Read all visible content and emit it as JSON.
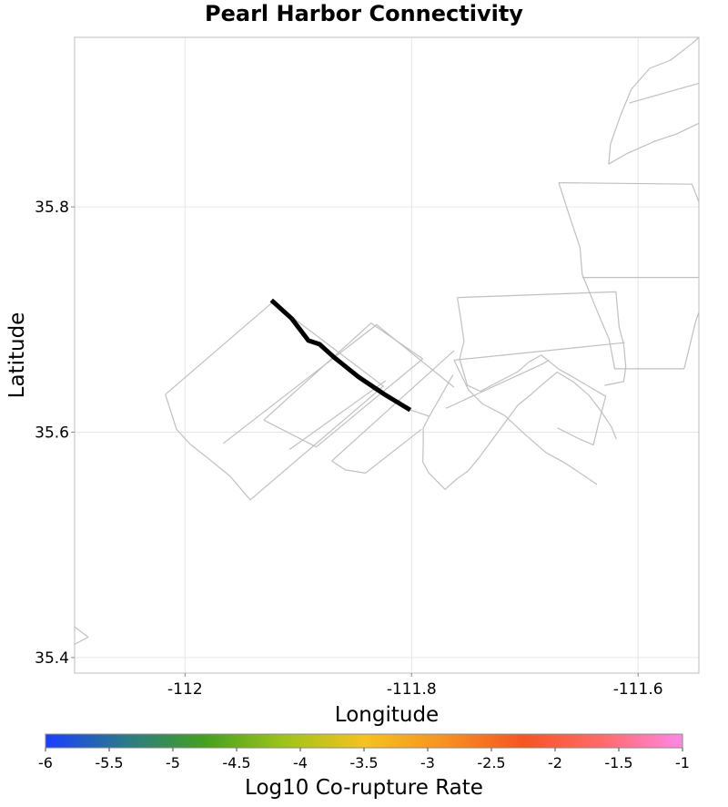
{
  "chart_data": {
    "type": "map",
    "title": "Pearl Harbor Connectivity",
    "xlabel": "Longitude",
    "ylabel": "Latitude",
    "xlim": [
      -112.0975,
      -111.5463
    ],
    "ylim": [
      35.3862,
      35.9505
    ],
    "x_ticks": [
      {
        "value": -112.0,
        "label": "-112"
      },
      {
        "value": -111.8,
        "label": "-111.8"
      },
      {
        "value": -111.6,
        "label": "-111.6"
      }
    ],
    "y_ticks": [
      {
        "value": 35.4,
        "label": "35.4"
      },
      {
        "value": 35.6,
        "label": "35.6"
      },
      {
        "value": 35.8,
        "label": "35.8"
      }
    ],
    "grid": true,
    "highlighted_fault": {
      "name": "Pearl Harbor",
      "color": "#000000",
      "trace": [
        [
          -111.9237,
          35.7172
        ],
        [
          -111.9059,
          35.7009
        ],
        [
          -111.8911,
          35.6814
        ],
        [
          -111.8813,
          35.6781
        ],
        [
          -111.8684,
          35.6665
        ],
        [
          -111.8467,
          35.649
        ],
        [
          -111.8239,
          35.6336
        ],
        [
          -111.8012,
          35.6198
        ]
      ]
    },
    "fault_sections": [
      [
        [
          -112.0174,
          35.6335
        ],
        [
          -111.9228,
          35.7153
        ],
        [
          -111.8249,
          35.6409
        ],
        [
          -111.9424,
          35.54
        ],
        [
          -111.9602,
          35.5609
        ],
        [
          -111.978,
          35.5755
        ],
        [
          -111.9958,
          35.5896
        ],
        [
          -112.0076,
          35.6027
        ],
        [
          -112.0174,
          35.6335
        ]
      ],
      [
        [
          -111.9662,
          35.5901
        ],
        [
          -111.8308,
          35.6954
        ],
        [
          -111.7625,
          35.64
        ]
      ],
      [
        [
          -111.8229,
          35.6457
        ],
        [
          -111.9078,
          35.5847
        ]
      ],
      [
        [
          -111.9305,
          35.6108
        ],
        [
          -111.8357,
          35.6969
        ],
        [
          -111.7902,
          35.6651
        ],
        [
          -111.8842,
          35.5869
        ],
        [
          -111.9305,
          35.6108
        ]
      ],
      [
        [
          -111.8704,
          35.5745
        ],
        [
          -111.7625,
          35.6725
        ]
      ],
      [
        [
          -111.8704,
          35.5745
        ],
        [
          -111.8585,
          35.5666
        ],
        [
          -111.8407,
          35.5637
        ],
        [
          -111.7911,
          35.6027
        ]
      ],
      [
        [
          -111.803,
          35.6205
        ],
        [
          -111.7843,
          35.6141
        ],
        [
          -111.7634,
          35.6509
        ]
      ],
      [
        [
          -111.7596,
          35.7195
        ],
        [
          -111.6196,
          35.7246
        ],
        [
          -111.6167,
          35.6933
        ],
        [
          -111.6127,
          35.6781
        ],
        [
          -111.6108,
          35.658
        ],
        [
          -111.6127,
          35.645
        ],
        [
          -111.6295,
          35.6416
        ]
      ],
      [
        [
          -111.7596,
          35.7195
        ],
        [
          -111.7566,
          35.7009
        ],
        [
          -111.7537,
          35.6809
        ],
        [
          -111.7576,
          35.665
        ],
        [
          -111.7507,
          35.6416
        ],
        [
          -111.7392,
          35.6364
        ]
      ],
      [
        [
          -111.7625,
          35.664
        ],
        [
          -111.6117,
          35.6795
        ]
      ],
      [
        [
          -111.67,
          35.8215
        ],
        [
          -111.5523,
          35.8202
        ],
        [
          -111.5463,
          35.8043
        ],
        [
          -111.5405,
          35.7906
        ],
        [
          -111.5355,
          35.7635
        ],
        [
          -111.5355,
          35.7374
        ],
        [
          -111.5493,
          35.6978
        ],
        [
          -111.5593,
          35.6563
        ]
      ],
      [
        [
          -111.67,
          35.8215
        ],
        [
          -111.6591,
          35.7875
        ],
        [
          -111.6512,
          35.764
        ],
        [
          -111.6493,
          35.74
        ]
      ],
      [
        [
          -111.6493,
          35.7374
        ],
        [
          -111.5355,
          35.7374
        ]
      ],
      [
        [
          -111.6493,
          35.74
        ],
        [
          -111.6334,
          35.7009
        ],
        [
          -111.6255,
          35.6825
        ],
        [
          -111.6206,
          35.6563
        ],
        [
          -111.5593,
          35.6563
        ]
      ],
      [
        [
          -111.7392,
          35.6364
        ],
        [
          -111.7062,
          35.6537
        ],
        [
          -111.6961,
          35.6625
        ],
        [
          -111.6855,
          35.6684
        ],
        [
          -111.6694,
          35.6556
        ],
        [
          -111.6591,
          35.6499
        ],
        [
          -111.6285,
          35.6318
        ],
        [
          -111.6344,
          35.61
        ],
        [
          -111.6394,
          35.5888
        ],
        [
          -111.6513,
          35.5937
        ],
        [
          -111.6711,
          35.6038
        ]
      ],
      [
        [
          -111.7625,
          35.664
        ],
        [
          -111.7497,
          35.6375
        ],
        [
          -111.7377,
          35.6254
        ],
        [
          -111.7178,
          35.6148
        ],
        [
          -111.6997,
          35.5979
        ],
        [
          -111.6815,
          35.5821
        ],
        [
          -111.6633,
          35.572
        ],
        [
          -111.6453,
          35.5598
        ],
        [
          -111.6364,
          35.5536
        ]
      ],
      [
        [
          -111.7843,
          35.6141
        ],
        [
          -111.7897,
          35.6038
        ],
        [
          -111.7897,
          35.5889
        ],
        [
          -111.7901,
          35.5735
        ],
        [
          -111.7847,
          35.5637
        ],
        [
          -111.7704,
          35.5493
        ],
        [
          -111.7596,
          35.5588
        ],
        [
          -111.7502,
          35.5654
        ],
        [
          -111.7405,
          35.5773
        ]
      ],
      [
        [
          -111.7405,
          35.5773
        ],
        [
          -111.7062,
          35.624
        ],
        [
          -111.6954,
          35.6327
        ],
        [
          -111.6857,
          35.6414
        ],
        [
          -111.6714,
          35.6534
        ],
        [
          -111.6568,
          35.6444
        ],
        [
          -111.6433,
          35.6327
        ],
        [
          -111.6334,
          35.6196
        ],
        [
          -111.6235,
          35.6047
        ],
        [
          -111.6192,
          35.5939
        ]
      ],
      [
        [
          -111.7696,
          35.6212
        ],
        [
          -111.6856,
          35.66
        ],
        [
          -111.6785,
          35.664
        ]
      ],
      [
        [
          -111.5463,
          35.5888
        ],
        [
          -111.5409,
          35.6003
        ]
      ],
      [
        [
          -111.5463,
          35.9505
        ],
        [
          -111.5513,
          35.9459
        ],
        [
          -111.5712,
          35.9303
        ],
        [
          -111.5897,
          35.923
        ],
        [
          -111.6059,
          35.9044
        ],
        [
          -111.6151,
          35.8823
        ],
        [
          -111.6243,
          35.8559
        ],
        [
          -111.6259,
          35.838
        ]
      ],
      [
        [
          -111.5463,
          35.9097
        ],
        [
          -111.6078,
          35.8922
        ]
      ],
      [
        [
          -111.5463,
          35.8743
        ],
        [
          -111.5659,
          35.8647
        ],
        [
          -111.585,
          35.8584
        ],
        [
          -111.6095,
          35.8475
        ],
        [
          -111.6259,
          35.838
        ]
      ],
      [
        [
          -112.0975,
          35.4273
        ],
        [
          -112.0855,
          35.4181
        ],
        [
          -112.0975,
          35.4118
        ]
      ]
    ],
    "colorbar": {
      "label": "Log10 Co-rupture Rate",
      "min": -6,
      "max": -1,
      "stops": [
        "#1a3fff",
        "#2b7a8a",
        "#44a020",
        "#9ec41a",
        "#f6c21e",
        "#f79222",
        "#f55522",
        "#ff6a6a",
        "#ff88e6"
      ],
      "ticks": [
        {
          "value": -6,
          "label": "-6"
        },
        {
          "value": -5.5,
          "label": "-5.5"
        },
        {
          "value": -5,
          "label": "-5"
        },
        {
          "value": -4.5,
          "label": "-4.5"
        },
        {
          "value": -4,
          "label": "-4"
        },
        {
          "value": -3.5,
          "label": "-3.5"
        },
        {
          "value": -3,
          "label": "-3"
        },
        {
          "value": -2.5,
          "label": "-2.5"
        },
        {
          "value": -2,
          "label": "-2"
        },
        {
          "value": -1.5,
          "label": "-1.5"
        },
        {
          "value": -1,
          "label": "-1"
        }
      ]
    }
  }
}
